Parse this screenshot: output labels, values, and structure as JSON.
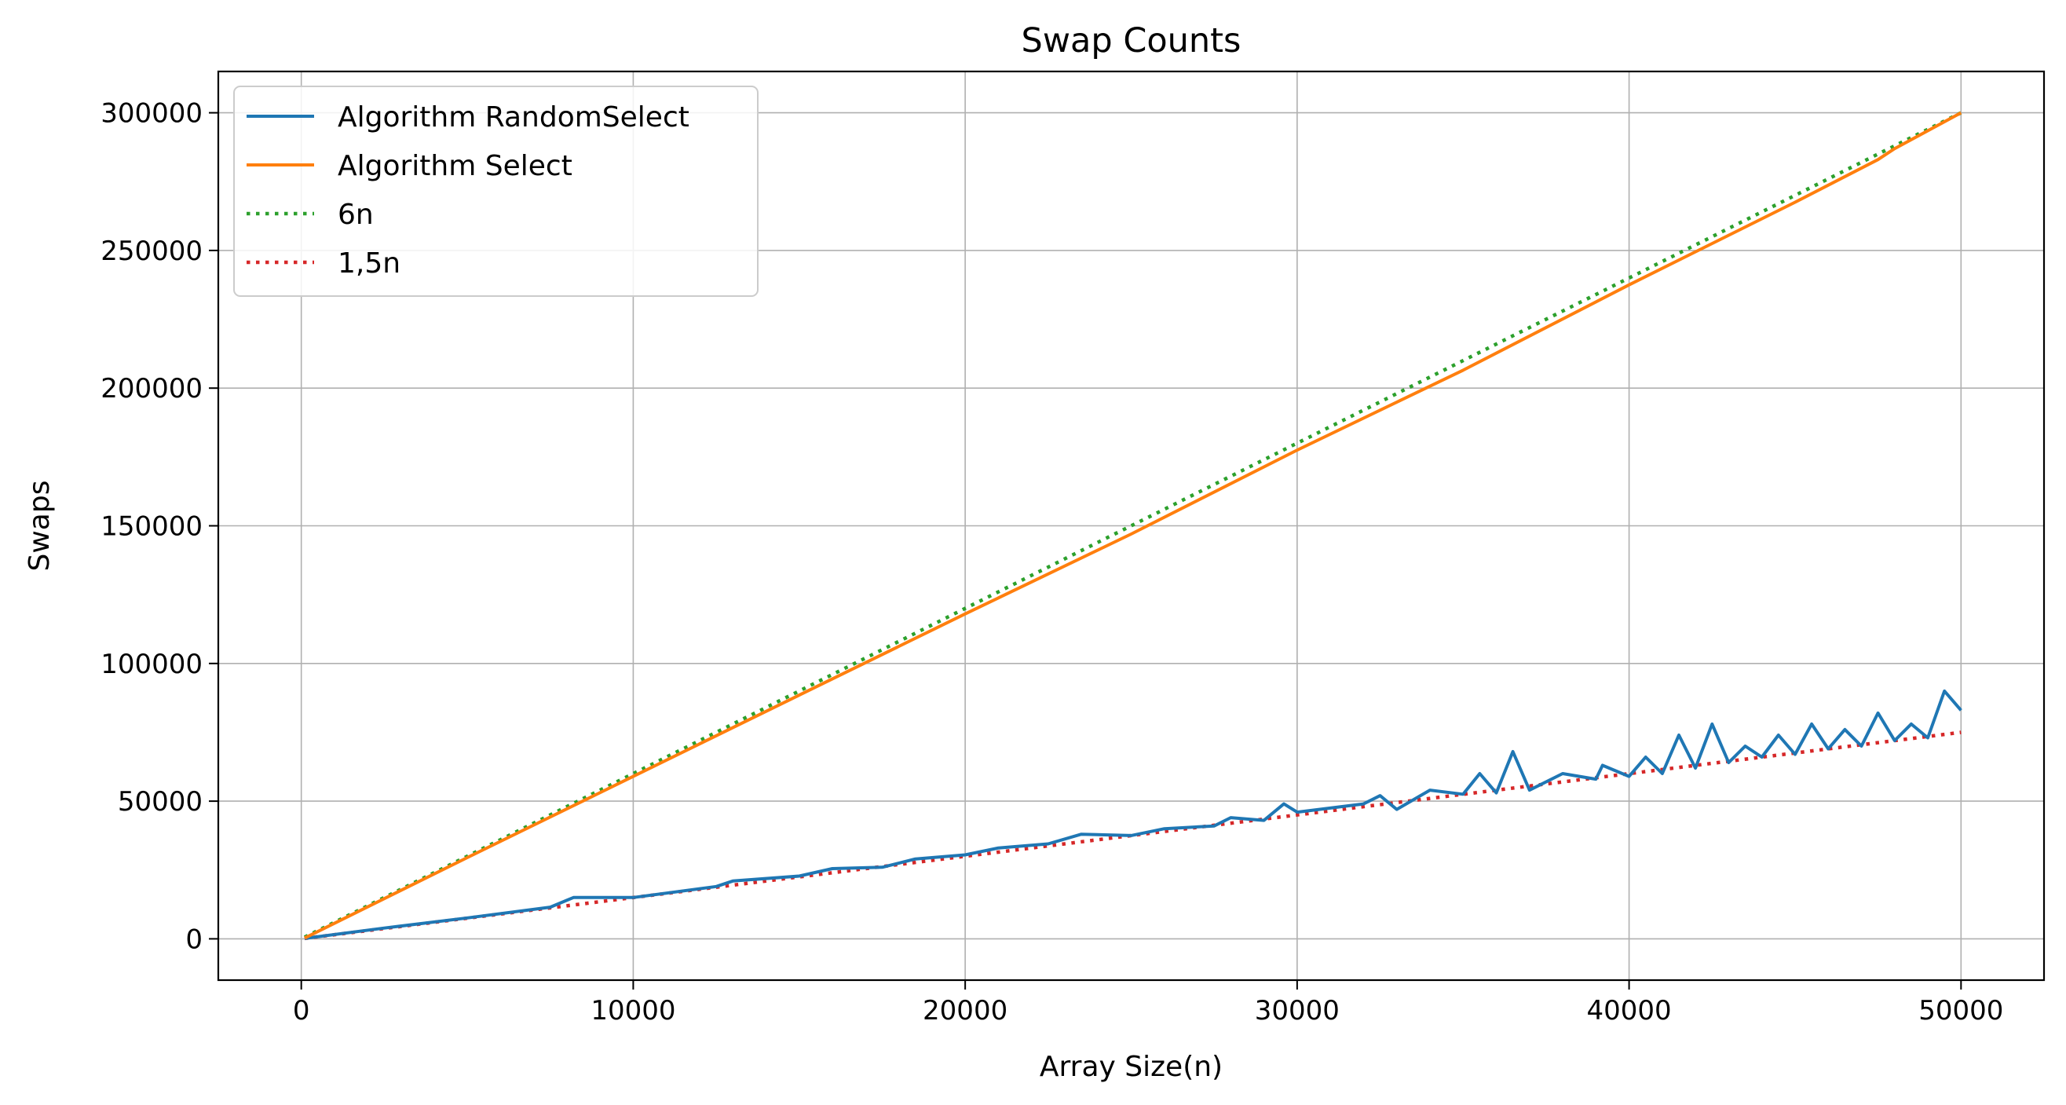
{
  "chart_data": {
    "type": "line",
    "title": "Swap Counts",
    "xlabel": "Array Size(n)",
    "ylabel": "Swaps",
    "xlim": [
      -2500,
      52500
    ],
    "ylim": [
      -15000,
      315000
    ],
    "xticks": [
      0,
      10000,
      20000,
      30000,
      40000,
      50000
    ],
    "yticks": [
      0,
      50000,
      100000,
      150000,
      200000,
      250000,
      300000
    ],
    "xtick_labels": [
      "0",
      "10000",
      "20000",
      "30000",
      "40000",
      "50000"
    ],
    "ytick_labels": [
      "0",
      "50000",
      "100000",
      "150000",
      "200000",
      "250000",
      "300000"
    ],
    "grid": true,
    "legend_position": "top-left",
    "series": [
      {
        "name": "Algorithm RandomSelect",
        "color": "#1f77b4",
        "style": "solid",
        "x": [
          100,
          2500,
          5000,
          7500,
          8200,
          10000,
          12500,
          13000,
          15000,
          16000,
          17500,
          18500,
          20000,
          21000,
          22500,
          23500,
          25000,
          26000,
          27500,
          28000,
          29000,
          29600,
          30000,
          31000,
          32000,
          32500,
          33000,
          34000,
          35000,
          35500,
          36000,
          36500,
          37000,
          38000,
          39000,
          39200,
          40000,
          40500,
          41000,
          41500,
          42000,
          42500,
          43000,
          43500,
          44000,
          44500,
          45000,
          45500,
          46000,
          46500,
          47000,
          47500,
          48000,
          48500,
          49000,
          49500,
          50000
        ],
        "y": [
          150,
          3900,
          7600,
          11500,
          15000,
          15000,
          19000,
          21000,
          22800,
          25500,
          26000,
          29000,
          30500,
          33000,
          34500,
          38000,
          37500,
          40000,
          41000,
          44000,
          43000,
          49000,
          46000,
          47500,
          49000,
          52000,
          47000,
          54000,
          52500,
          60000,
          53000,
          68000,
          54000,
          60000,
          58000,
          63000,
          59000,
          66000,
          60000,
          74000,
          62000,
          78000,
          64000,
          70000,
          66000,
          74000,
          67000,
          78000,
          69000,
          76000,
          70000,
          82000,
          72000,
          78000,
          73000,
          90000,
          83000
        ]
      },
      {
        "name": "Algorithm Select",
        "color": "#ff7f0e",
        "style": "solid",
        "x": [
          100,
          5000,
          10000,
          15000,
          20000,
          25000,
          30000,
          35000,
          40000,
          45000,
          47500,
          48000,
          50000
        ],
        "y": [
          300,
          29500,
          59000,
          88500,
          118000,
          147000,
          177500,
          206500,
          237500,
          267500,
          283000,
          287000,
          300000
        ]
      },
      {
        "name": "6n",
        "color": "#2ca02c",
        "style": "dotted",
        "x": [
          100,
          50000
        ],
        "y": [
          600,
          300000
        ]
      },
      {
        "name": "1,5n",
        "color": "#d62728",
        "style": "dotted",
        "x": [
          100,
          50000
        ],
        "y": [
          150,
          75000
        ]
      }
    ]
  }
}
